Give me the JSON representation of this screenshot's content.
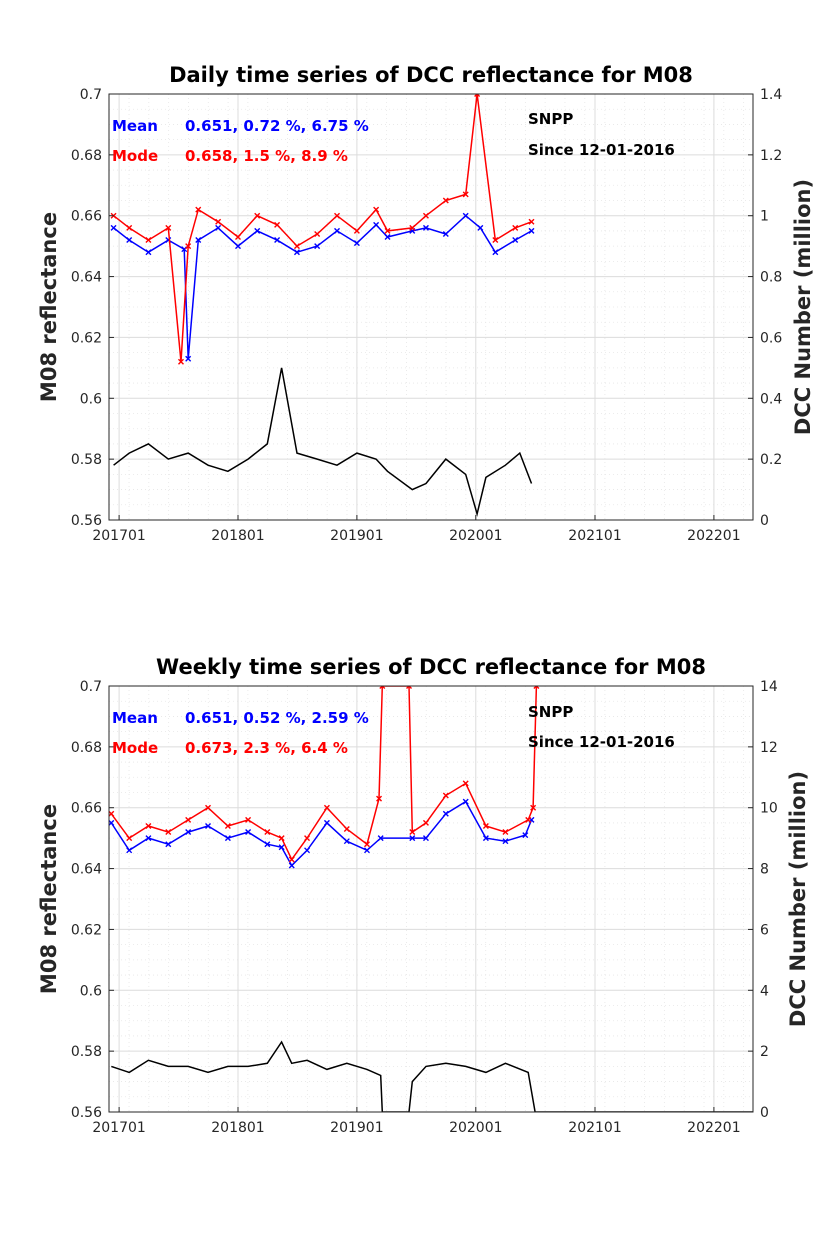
{
  "chart_data": [
    {
      "type": "line",
      "title": "Daily time series of DCC reflectance for M08",
      "ylabel": "M08 reflectance",
      "y2label": "DCC Number (million)",
      "ylim": [
        0.56,
        0.7
      ],
      "y2lim": [
        0,
        1.4
      ],
      "xlim": [
        "2016-12-01",
        "2022-05-01"
      ],
      "x_tick_labels": [
        "201701",
        "201801",
        "201901",
        "202001",
        "202101",
        "202201"
      ],
      "y_tick_labels": [
        "0.56",
        "0.58",
        "0.6",
        "0.62",
        "0.64",
        "0.66",
        "0.68",
        "0.7"
      ],
      "y2_tick_labels": [
        "0",
        "0.2",
        "0.4",
        "0.6",
        "0.8",
        "1",
        "1.2",
        "1.4"
      ],
      "grid": true,
      "colors": {
        "mean": "#0000ff",
        "mode": "#ff0000",
        "count": "#000000"
      },
      "annotations": {
        "mean_label": "Mean",
        "mean_stats": "0.651, 0.72 %, 6.75 %",
        "mode_label": "Mode",
        "mode_stats": "0.658, 1.5 %, 8.9 %",
        "satellite": "SNPP",
        "since": "Since 12-01-2016"
      },
      "series": [
        {
          "name": "Mean",
          "axis": "left",
          "color": "#0000ff",
          "marker": "x",
          "x": [
            "2016-12-15",
            "2017-02-01",
            "2017-04-01",
            "2017-06-01",
            "2017-07-20",
            "2017-08-01",
            "2017-09-01",
            "2017-11-01",
            "2018-01-01",
            "2018-03-01",
            "2018-05-01",
            "2018-07-01",
            "2018-09-01",
            "2018-11-01",
            "2019-01-01",
            "2019-03-01",
            "2019-04-05",
            "2019-06-20",
            "2019-08-01",
            "2019-10-01",
            "2019-12-01",
            "2020-01-15",
            "2020-03-01",
            "2020-05-01",
            "2020-06-20"
          ],
          "y": [
            0.656,
            0.652,
            0.648,
            0.652,
            0.649,
            0.613,
            0.652,
            0.656,
            0.65,
            0.655,
            0.652,
            0.648,
            0.65,
            0.655,
            0.651,
            0.657,
            0.653,
            0.655,
            0.656,
            0.654,
            0.66,
            0.656,
            0.648,
            0.652,
            0.655
          ]
        },
        {
          "name": "Mode",
          "axis": "left",
          "color": "#ff0000",
          "marker": "x",
          "x": [
            "2016-12-15",
            "2017-02-01",
            "2017-04-01",
            "2017-06-01",
            "2017-07-10",
            "2017-08-01",
            "2017-09-01",
            "2017-11-01",
            "2018-01-01",
            "2018-03-01",
            "2018-05-01",
            "2018-07-01",
            "2018-09-01",
            "2018-11-01",
            "2019-01-01",
            "2019-03-01",
            "2019-04-05",
            "2019-06-20",
            "2019-08-01",
            "2019-10-01",
            "2019-12-01",
            "2020-01-05",
            "2020-03-01",
            "2020-05-01",
            "2020-06-20"
          ],
          "y": [
            0.66,
            0.656,
            0.652,
            0.656,
            0.612,
            0.65,
            0.662,
            0.658,
            0.653,
            0.66,
            0.657,
            0.65,
            0.654,
            0.66,
            0.655,
            0.662,
            0.655,
            0.656,
            0.66,
            0.665,
            0.667,
            0.7,
            0.652,
            0.656,
            0.658
          ]
        },
        {
          "name": "DCC Number",
          "axis": "right",
          "color": "#000000",
          "marker": "none",
          "x": [
            "2016-12-15",
            "2017-02-01",
            "2017-04-01",
            "2017-06-01",
            "2017-08-01",
            "2017-10-01",
            "2017-12-01",
            "2018-02-01",
            "2018-04-01",
            "2018-05-15",
            "2018-07-01",
            "2018-09-01",
            "2018-11-01",
            "2019-01-01",
            "2019-03-01",
            "2019-04-05",
            "2019-06-20",
            "2019-08-01",
            "2019-10-01",
            "2019-12-01",
            "2020-01-05",
            "2020-02-01",
            "2020-04-01",
            "2020-05-15",
            "2020-06-20"
          ],
          "y": [
            0.18,
            0.22,
            0.25,
            0.2,
            0.22,
            0.18,
            0.16,
            0.2,
            0.25,
            0.5,
            0.22,
            0.2,
            0.18,
            0.22,
            0.2,
            0.16,
            0.1,
            0.12,
            0.2,
            0.15,
            0.02,
            0.14,
            0.18,
            0.22,
            0.12
          ]
        }
      ]
    },
    {
      "type": "line",
      "title": "Weekly time series of DCC reflectance for M08",
      "ylabel": "M08 reflectance",
      "y2label": "DCC Number (million)",
      "ylim": [
        0.56,
        0.7
      ],
      "y2lim": [
        0,
        14
      ],
      "xlim": [
        "2016-12-01",
        "2022-05-01"
      ],
      "x_tick_labels": [
        "201701",
        "201801",
        "201901",
        "202001",
        "202101",
        "202201"
      ],
      "y_tick_labels": [
        "0.56",
        "0.58",
        "0.6",
        "0.62",
        "0.64",
        "0.66",
        "0.68",
        "0.7"
      ],
      "y2_tick_labels": [
        "0",
        "2",
        "4",
        "6",
        "8",
        "10",
        "12",
        "14"
      ],
      "grid": true,
      "colors": {
        "mean": "#0000ff",
        "mode": "#ff0000",
        "count": "#000000"
      },
      "annotations": {
        "mean_label": "Mean",
        "mean_stats": "0.651, 0.52 %, 2.59 %",
        "mode_label": "Mode",
        "mode_stats": "0.673, 2.3 %, 6.4 %",
        "satellite": "SNPP",
        "since": "Since 12-01-2016"
      },
      "series": [
        {
          "name": "Mean",
          "axis": "left",
          "color": "#0000ff",
          "marker": "x",
          "x": [
            "2016-12-08",
            "2017-02-01",
            "2017-04-01",
            "2017-06-01",
            "2017-08-01",
            "2017-10-01",
            "2017-12-01",
            "2018-02-01",
            "2018-04-01",
            "2018-05-15",
            "2018-06-15",
            "2018-08-01",
            "2018-10-01",
            "2018-12-01",
            "2019-02-01",
            "2019-03-15",
            "2019-06-20",
            "2019-08-01",
            "2019-10-01",
            "2019-12-01",
            "2020-02-01",
            "2020-04-01",
            "2020-06-01",
            "2020-06-20"
          ],
          "y": [
            0.655,
            0.646,
            0.65,
            0.648,
            0.652,
            0.654,
            0.65,
            0.652,
            0.648,
            0.647,
            0.641,
            0.646,
            0.655,
            0.649,
            0.646,
            0.65,
            0.65,
            0.65,
            0.658,
            0.662,
            0.65,
            0.649,
            0.651,
            0.656
          ]
        },
        {
          "name": "Mode",
          "axis": "left",
          "color": "#ff0000",
          "marker": "x",
          "x": [
            "2016-12-08",
            "2017-02-01",
            "2017-04-01",
            "2017-06-01",
            "2017-08-01",
            "2017-10-01",
            "2017-12-01",
            "2018-02-01",
            "2018-04-01",
            "2018-05-15",
            "2018-06-15",
            "2018-08-01",
            "2018-10-01",
            "2018-12-01",
            "2019-02-01",
            "2019-03-10",
            "2019-03-20",
            "2019-06-10",
            "2019-06-20",
            "2019-08-01",
            "2019-10-01",
            "2019-12-01",
            "2020-02-01",
            "2020-04-01",
            "2020-06-10",
            "2020-06-25",
            "2020-07-05"
          ],
          "y": [
            0.658,
            0.65,
            0.654,
            0.652,
            0.656,
            0.66,
            0.654,
            0.656,
            0.652,
            0.65,
            0.643,
            0.65,
            0.66,
            0.653,
            0.648,
            0.663,
            0.7,
            0.7,
            0.652,
            0.655,
            0.664,
            0.668,
            0.654,
            0.652,
            0.656,
            0.66,
            0.7
          ]
        },
        {
          "name": "DCC Number",
          "axis": "right",
          "color": "#000000",
          "marker": "none",
          "x": [
            "2016-12-08",
            "2017-02-01",
            "2017-04-01",
            "2017-06-01",
            "2017-08-01",
            "2017-10-01",
            "2017-12-01",
            "2018-02-01",
            "2018-04-01",
            "2018-05-15",
            "2018-06-15",
            "2018-08-01",
            "2018-10-01",
            "2018-12-01",
            "2019-02-01",
            "2019-03-15",
            "2019-03-20",
            "2019-06-10",
            "2019-06-20",
            "2019-08-01",
            "2019-10-01",
            "2019-12-01",
            "2020-02-01",
            "2020-04-01",
            "2020-06-10",
            "2020-07-01",
            "2022-05-01"
          ],
          "y": [
            1.5,
            1.3,
            1.7,
            1.5,
            1.5,
            1.3,
            1.5,
            1.5,
            1.6,
            2.3,
            1.6,
            1.7,
            1.4,
            1.6,
            1.4,
            1.2,
            0.0,
            0.0,
            1.0,
            1.5,
            1.6,
            1.5,
            1.3,
            1.6,
            1.3,
            0.0,
            0.0
          ]
        }
      ]
    }
  ]
}
